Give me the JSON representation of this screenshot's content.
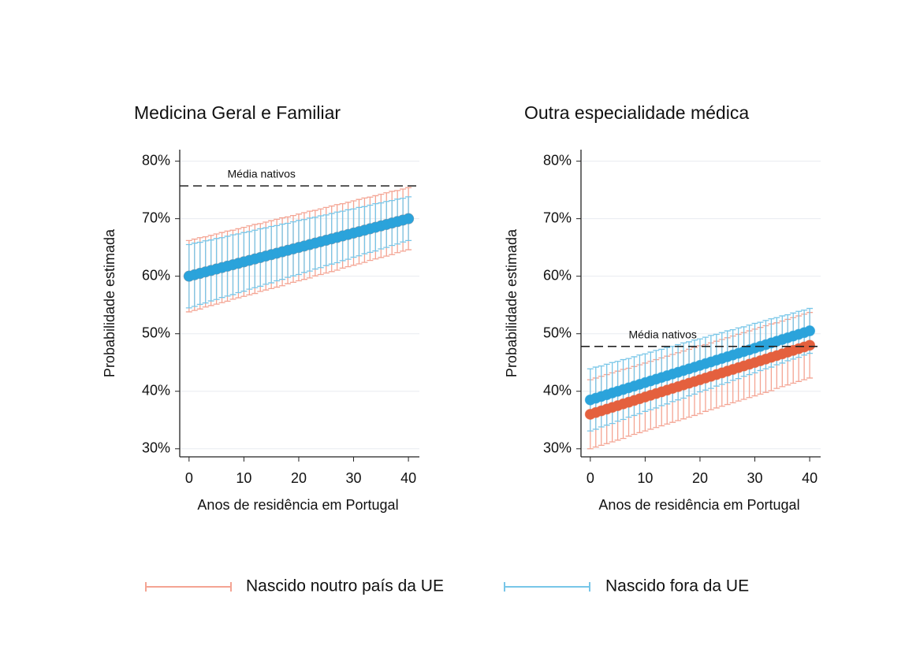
{
  "chart_data": [
    {
      "type": "errorbar",
      "title": "Medicina Geral e Familiar",
      "y_label": "Probabilidade estimada",
      "x_label": "Anos de residência em Portugal",
      "x": [
        0,
        1,
        2,
        3,
        4,
        5,
        6,
        7,
        8,
        9,
        10,
        11,
        12,
        13,
        14,
        15,
        16,
        17,
        18,
        19,
        20,
        21,
        22,
        23,
        24,
        25,
        26,
        27,
        28,
        29,
        30,
        31,
        32,
        33,
        34,
        35,
        36,
        37,
        38,
        39,
        40
      ],
      "series": [
        {
          "name": "Nascido noutro país da UE",
          "color": "#e4603e",
          "errorbar_color": "#f4a493",
          "values": [
            60,
            60.25,
            60.5,
            60.75,
            61,
            61.25,
            61.5,
            61.75,
            62,
            62.25,
            62.5,
            62.75,
            63,
            63.25,
            63.5,
            63.75,
            64,
            64.25,
            64.5,
            64.75,
            65,
            65.25,
            65.5,
            65.75,
            66,
            66.25,
            66.5,
            66.75,
            67,
            67.25,
            67.5,
            67.75,
            68,
            68.25,
            68.5,
            68.75,
            69,
            69.25,
            69.5,
            69.75,
            70
          ],
          "errors": [
            6.2,
            6.2,
            6.2,
            6.1,
            6.1,
            6.1,
            6.1,
            6.1,
            6.0,
            6.0,
            6.0,
            6.0,
            6.0,
            5.9,
            5.9,
            5.9,
            5.9,
            5.9,
            5.8,
            5.8,
            5.8,
            5.8,
            5.8,
            5.7,
            5.7,
            5.7,
            5.7,
            5.7,
            5.6,
            5.6,
            5.6,
            5.6,
            5.6,
            5.5,
            5.5,
            5.5,
            5.5,
            5.5,
            5.4,
            5.4,
            5.4
          ]
        },
        {
          "name": "Nascido fora da UE",
          "color": "#2ba3db",
          "errorbar_color": "#78c6e8",
          "values": [
            60,
            60.25,
            60.5,
            60.75,
            61,
            61.25,
            61.5,
            61.75,
            62,
            62.25,
            62.5,
            62.75,
            63,
            63.25,
            63.5,
            63.75,
            64,
            64.25,
            64.5,
            64.75,
            65,
            65.25,
            65.5,
            65.75,
            66,
            66.25,
            66.5,
            66.75,
            67,
            67.25,
            67.5,
            67.75,
            68,
            68.25,
            68.5,
            68.75,
            69,
            69.25,
            69.5,
            69.75,
            70
          ],
          "errors": [
            5.5,
            5.5,
            5.4,
            5.4,
            5.3,
            5.3,
            5.2,
            5.2,
            5.2,
            5.1,
            5.1,
            5.0,
            5.0,
            5.0,
            4.9,
            4.9,
            4.8,
            4.8,
            4.7,
            4.7,
            4.7,
            4.6,
            4.6,
            4.5,
            4.5,
            4.4,
            4.4,
            4.4,
            4.3,
            4.3,
            4.2,
            4.2,
            4.1,
            4.1,
            4.1,
            4.0,
            4.0,
            3.9,
            3.9,
            3.8,
            3.8
          ]
        }
      ],
      "reference": {
        "label": "Média nativos",
        "value": 75.7
      },
      "xlim": [
        -1.7,
        42
      ],
      "ylim": [
        28.6,
        82
      ],
      "xticks": [
        0,
        10,
        20,
        30,
        40
      ],
      "yticks": [
        {
          "value": 30,
          "label": "30%"
        },
        {
          "value": 40,
          "label": "40%"
        },
        {
          "value": 50,
          "label": "50%"
        },
        {
          "value": 60,
          "label": "60%"
        },
        {
          "value": 70,
          "label": "70%"
        },
        {
          "value": 80,
          "label": "80%"
        }
      ],
      "grid": true
    },
    {
      "type": "errorbar",
      "title": "Outra especialidade médica",
      "y_label": "Probabilidade estimada",
      "x_label": "Anos de residência em Portugal",
      "x": [
        0,
        1,
        2,
        3,
        4,
        5,
        6,
        7,
        8,
        9,
        10,
        11,
        12,
        13,
        14,
        15,
        16,
        17,
        18,
        19,
        20,
        21,
        22,
        23,
        24,
        25,
        26,
        27,
        28,
        29,
        30,
        31,
        32,
        33,
        34,
        35,
        36,
        37,
        38,
        39,
        40
      ],
      "series": [
        {
          "name": "Nascido noutro país da UE",
          "color": "#e4603e",
          "errorbar_color": "#f4a493",
          "values": [
            36,
            36.3,
            36.6,
            36.9,
            37.2,
            37.5,
            37.8,
            38.1,
            38.4,
            38.7,
            39,
            39.3,
            39.6,
            39.9,
            40.2,
            40.5,
            40.8,
            41.1,
            41.4,
            41.7,
            42,
            42.3,
            42.6,
            42.9,
            43.2,
            43.5,
            43.8,
            44.1,
            44.4,
            44.7,
            45,
            45.3,
            45.6,
            45.9,
            46.2,
            46.5,
            46.8,
            47.1,
            47.4,
            47.7,
            48
          ],
          "errors": [
            6.0,
            6.0,
            6.0,
            6.0,
            6.0,
            6.0,
            6.0,
            5.9,
            5.9,
            5.9,
            5.9,
            5.9,
            5.9,
            5.9,
            5.9,
            5.9,
            5.9,
            5.9,
            5.9,
            5.9,
            5.9,
            5.8,
            5.8,
            5.8,
            5.8,
            5.8,
            5.8,
            5.8,
            5.8,
            5.8,
            5.8,
            5.8,
            5.8,
            5.8,
            5.7,
            5.7,
            5.7,
            5.7,
            5.7,
            5.7,
            5.7
          ]
        },
        {
          "name": "Nascido fora da UE",
          "color": "#2ba3db",
          "errorbar_color": "#78c6e8",
          "values": [
            38.5,
            38.8,
            39.1,
            39.4,
            39.7,
            40,
            40.3,
            40.6,
            40.9,
            41.2,
            41.5,
            41.8,
            42.1,
            42.4,
            42.7,
            43,
            43.3,
            43.6,
            43.9,
            44.2,
            44.5,
            44.8,
            45.1,
            45.4,
            45.7,
            46,
            46.3,
            46.6,
            46.9,
            47.2,
            47.5,
            47.8,
            48.1,
            48.4,
            48.7,
            49,
            49.3,
            49.6,
            49.9,
            50.2,
            50.5
          ],
          "errors": [
            5.4,
            5.4,
            5.3,
            5.3,
            5.3,
            5.2,
            5.2,
            5.1,
            5.1,
            5.1,
            5.0,
            5.0,
            5.0,
            4.9,
            4.9,
            4.8,
            4.8,
            4.8,
            4.7,
            4.7,
            4.6,
            4.6,
            4.6,
            4.5,
            4.5,
            4.5,
            4.4,
            4.4,
            4.3,
            4.3,
            4.3,
            4.2,
            4.2,
            4.2,
            4.1,
            4.1,
            4.0,
            4.0,
            4.0,
            3.9,
            3.9
          ]
        }
      ],
      "reference": {
        "label": "Média nativos",
        "value": 47.8
      },
      "xlim": [
        -1.7,
        42
      ],
      "ylim": [
        28.6,
        82
      ],
      "xticks": [
        0,
        10,
        20,
        30,
        40
      ],
      "yticks": [
        {
          "value": 30,
          "label": "30%"
        },
        {
          "value": 40,
          "label": "40%"
        },
        {
          "value": 50,
          "label": "50%"
        },
        {
          "value": 60,
          "label": "60%"
        },
        {
          "value": 70,
          "label": "70%"
        },
        {
          "value": 80,
          "label": "80%"
        }
      ],
      "grid": true
    }
  ]
}
